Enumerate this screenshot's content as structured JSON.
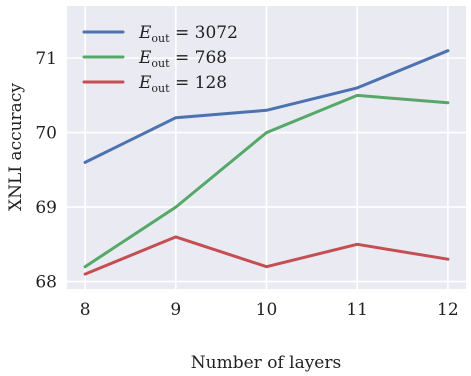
{
  "chart_data": {
    "type": "line",
    "xlabel": "Number of layers",
    "ylabel": "XNLI accuracy",
    "x": [
      8,
      9,
      10,
      11,
      12
    ],
    "x_ticks": [
      "8",
      "9",
      "10",
      "11",
      "12"
    ],
    "y_ticks": [
      "68",
      "69",
      "70",
      "71"
    ],
    "xlim": [
      7.8,
      12.2
    ],
    "ylim": [
      67.9,
      71.7
    ],
    "grid": true,
    "legend_position": "top-left",
    "series": [
      {
        "name": "E_out = 3072",
        "legend_main": "E",
        "legend_sub": "out",
        "legend_value": "3072",
        "color": "#4c72b0",
        "values": [
          69.6,
          70.2,
          70.3,
          70.6,
          71.1
        ]
      },
      {
        "name": "E_out = 768",
        "legend_main": "E",
        "legend_sub": "out",
        "legend_value": "768",
        "color": "#55a868",
        "values": [
          68.2,
          69.0,
          70.0,
          70.5,
          70.4
        ]
      },
      {
        "name": "E_out = 128",
        "legend_main": "E",
        "legend_sub": "out",
        "legend_value": "128",
        "color": "#c44e52",
        "values": [
          68.1,
          68.6,
          68.2,
          68.5,
          68.3
        ]
      }
    ]
  }
}
